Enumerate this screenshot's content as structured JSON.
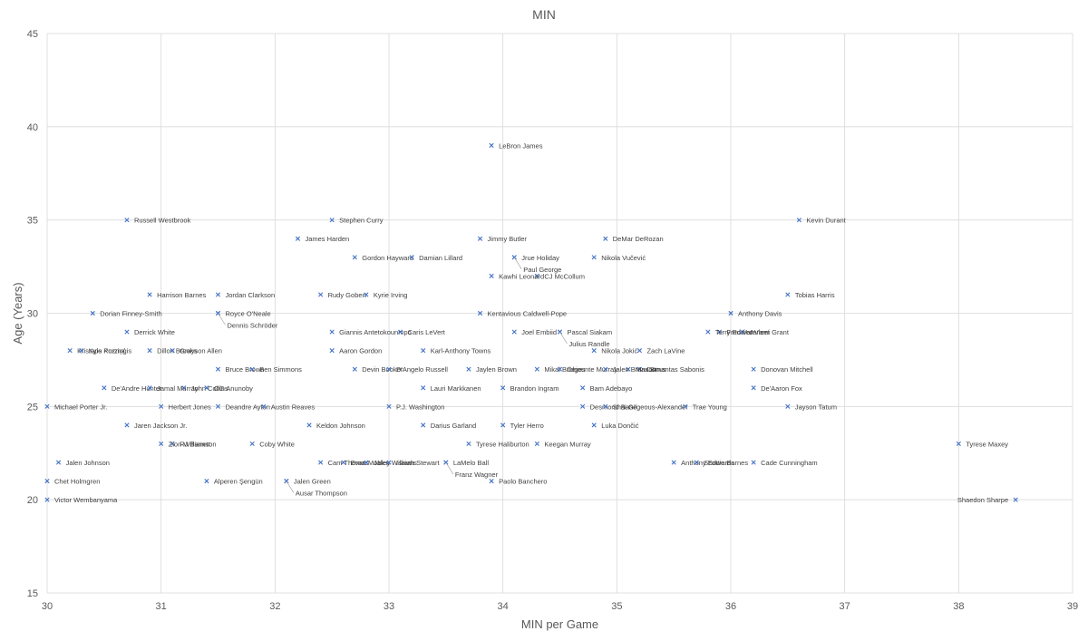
{
  "chart_data": {
    "type": "scatter",
    "title": "MIN",
    "xlabel": "MIN per Game",
    "ylabel": "Age (Years)",
    "xlim": [
      30,
      39
    ],
    "ylim": [
      15,
      45
    ],
    "x_ticks": [
      30,
      31,
      32,
      33,
      34,
      35,
      36,
      37,
      38,
      39
    ],
    "y_ticks": [
      15,
      20,
      25,
      30,
      35,
      40,
      45
    ],
    "grid": true,
    "marker_color": "#4472c4",
    "points": [
      {
        "label": "LeBron James",
        "x": 33.9,
        "y": 39
      },
      {
        "label": "Russell Westbrook",
        "x": 30.7,
        "y": 35
      },
      {
        "label": "Stephen Curry",
        "x": 32.5,
        "y": 35
      },
      {
        "label": "Kevin Durant",
        "x": 36.6,
        "y": 35
      },
      {
        "label": "James Harden",
        "x": 32.2,
        "y": 34
      },
      {
        "label": "Jimmy Butler",
        "x": 33.8,
        "y": 34
      },
      {
        "label": "DeMar DeRozan",
        "x": 34.9,
        "y": 34
      },
      {
        "label": "Gordon Hayward",
        "x": 32.7,
        "y": 33
      },
      {
        "label": "Jrue Holiday",
        "x": 34.1,
        "y": 33
      },
      {
        "label": "Paul George",
        "x": 34.1,
        "y": 33
      },
      {
        "label": "Nikola Vučević",
        "x": 34.8,
        "y": 33
      },
      {
        "label": "Damian Lillard",
        "x": 33.2,
        "y": 33
      },
      {
        "label": "CJ McCollum",
        "x": 34.3,
        "y": 32
      },
      {
        "label": "Kawhi Leonard",
        "x": 33.9,
        "y": 32
      },
      {
        "label": "Tobias Harris",
        "x": 36.5,
        "y": 31
      },
      {
        "label": "Harrison Barnes",
        "x": 30.9,
        "y": 31
      },
      {
        "label": "Jordan Clarkson",
        "x": 31.5,
        "y": 31
      },
      {
        "label": "Rudy Gobert",
        "x": 32.4,
        "y": 31
      },
      {
        "label": "Kyrie Irving",
        "x": 32.8,
        "y": 31
      },
      {
        "label": "Dorian Finney-Smith",
        "x": 30.4,
        "y": 30
      },
      {
        "label": "Royce O'Neale",
        "x": 31.5,
        "y": 30
      },
      {
        "label": "Dennis Schröder",
        "x": 31.5,
        "y": 30
      },
      {
        "label": "Kentavious Caldwell-Pope",
        "x": 33.8,
        "y": 30
      },
      {
        "label": "Anthony Davis",
        "x": 36.0,
        "y": 30
      },
      {
        "label": "Derrick White",
        "x": 30.7,
        "y": 29
      },
      {
        "label": "Giannis Antetokounmpo",
        "x": 32.5,
        "y": 29
      },
      {
        "label": "Caris LeVert",
        "x": 33.1,
        "y": 29
      },
      {
        "label": "Joel Embiid",
        "x": 34.1,
        "y": 29
      },
      {
        "label": "Pascal Siakam",
        "x": 34.5,
        "y": 29
      },
      {
        "label": "Julius Randle",
        "x": 34.5,
        "y": 29
      },
      {
        "label": "Fred VanVleet",
        "x": 35.9,
        "y": 29
      },
      {
        "label": "Jerami Grant",
        "x": 36.1,
        "y": 29
      },
      {
        "label": "Terry Rozier",
        "x": 35.8,
        "y": 29
      },
      {
        "label": "Kristaps Porziņģis",
        "x": 30.2,
        "y": 28
      },
      {
        "label": "Kyle Kuzma",
        "x": 30.3,
        "y": 28
      },
      {
        "label": "Dillon Brooks",
        "x": 30.9,
        "y": 28
      },
      {
        "label": "Grayson Allen",
        "x": 31.1,
        "y": 28
      },
      {
        "label": "Aaron Gordon",
        "x": 32.5,
        "y": 28
      },
      {
        "label": "Karl-Anthony Towns",
        "x": 33.3,
        "y": 28
      },
      {
        "label": "Nikola Jokić",
        "x": 34.8,
        "y": 28
      },
      {
        "label": "Zach LaVine",
        "x": 35.2,
        "y": 28
      },
      {
        "label": "Domantas Sabonis",
        "x": 35.2,
        "y": 27
      },
      {
        "label": "Bruce Brown",
        "x": 31.5,
        "y": 27
      },
      {
        "label": "Ben Simmons",
        "x": 31.8,
        "y": 27
      },
      {
        "label": "Devin Booker",
        "x": 32.7,
        "y": 27
      },
      {
        "label": "D'Angelo Russell",
        "x": 33.0,
        "y": 27
      },
      {
        "label": "Jaylen Brown",
        "x": 33.7,
        "y": 27
      },
      {
        "label": "Mikal Bridges",
        "x": 34.3,
        "y": 27
      },
      {
        "label": "Dejounte Murray",
        "x": 34.5,
        "y": 27
      },
      {
        "label": "Max Strus",
        "x": 35.1,
        "y": 27
      },
      {
        "label": "Jalen Brunson",
        "x": 34.9,
        "y": 27
      },
      {
        "label": "Donovan Mitchell",
        "x": 36.2,
        "y": 27
      },
      {
        "label": "De'Andre Hunter",
        "x": 30.5,
        "y": 26
      },
      {
        "label": "John Collins",
        "x": 31.2,
        "y": 26
      },
      {
        "label": "OG Anunoby",
        "x": 31.4,
        "y": 26
      },
      {
        "label": "Jamal Murray",
        "x": 30.9,
        "y": 26
      },
      {
        "label": "Lauri Markkanen",
        "x": 33.3,
        "y": 26
      },
      {
        "label": "Brandon Ingram",
        "x": 34.0,
        "y": 26
      },
      {
        "label": "Bam Adebayo",
        "x": 34.7,
        "y": 26
      },
      {
        "label": "De'Aaron Fox",
        "x": 36.2,
        "y": 26
      },
      {
        "label": "Michael Porter Jr.",
        "x": 30.0,
        "y": 25
      },
      {
        "label": "Deandre Ayton",
        "x": 31.5,
        "y": 25
      },
      {
        "label": "Herbert Jones",
        "x": 31.0,
        "y": 25
      },
      {
        "label": "Austin Reaves",
        "x": 31.9,
        "y": 25
      },
      {
        "label": "P.J. Washington",
        "x": 33.0,
        "y": 25
      },
      {
        "label": "Desmond Bane",
        "x": 34.7,
        "y": 25
      },
      {
        "label": "Shai Gilgeous-Alexander",
        "x": 34.9,
        "y": 25
      },
      {
        "label": "Trae Young",
        "x": 35.6,
        "y": 25
      },
      {
        "label": "Jayson Tatum",
        "x": 36.5,
        "y": 25
      },
      {
        "label": "Jaren Jackson Jr.",
        "x": 30.7,
        "y": 24
      },
      {
        "label": "Keldon Johnson",
        "x": 32.3,
        "y": 24
      },
      {
        "label": "Darius Garland",
        "x": 33.3,
        "y": 24
      },
      {
        "label": "Tyler Herro",
        "x": 34.0,
        "y": 24
      },
      {
        "label": "Luka Dončić",
        "x": 34.8,
        "y": 24
      },
      {
        "label": "RJ Barrett",
        "x": 31.1,
        "y": 23
      },
      {
        "label": "Zion Williamson",
        "x": 31.0,
        "y": 23
      },
      {
        "label": "Coby White",
        "x": 31.8,
        "y": 23
      },
      {
        "label": "Tyrese Haliburton",
        "x": 33.7,
        "y": 23
      },
      {
        "label": "Keegan Murray",
        "x": 34.3,
        "y": 23
      },
      {
        "label": "Tyrese Maxey",
        "x": 38.0,
        "y": 23
      },
      {
        "label": "Jalen Johnson",
        "x": 30.1,
        "y": 22
      },
      {
        "label": "Evan Mobley",
        "x": 32.6,
        "y": 22
      },
      {
        "label": "Cam Thomas",
        "x": 32.4,
        "y": 22
      },
      {
        "label": "Jalen Williams",
        "x": 32.8,
        "y": 22
      },
      {
        "label": "Isaiah Stewart",
        "x": 33.0,
        "y": 22
      },
      {
        "label": "LaMelo Ball",
        "x": 33.5,
        "y": 22
      },
      {
        "label": "Franz Wagner",
        "x": 33.5,
        "y": 22
      },
      {
        "label": "Anthony Edwards",
        "x": 35.5,
        "y": 22
      },
      {
        "label": "Scottie Barnes",
        "x": 35.7,
        "y": 22
      },
      {
        "label": "Cade Cunningham",
        "x": 36.2,
        "y": 22
      },
      {
        "label": "Chet Holmgren",
        "x": 30.0,
        "y": 21
      },
      {
        "label": "Alperen Şengün",
        "x": 31.4,
        "y": 21
      },
      {
        "label": "Jalen Green",
        "x": 32.1,
        "y": 21
      },
      {
        "label": "Ausar Thompson",
        "x": 32.1,
        "y": 21
      },
      {
        "label": "Paolo Banchero",
        "x": 33.9,
        "y": 21
      },
      {
        "label": "Victor Wembanyama",
        "x": 30.0,
        "y": 20
      },
      {
        "label": "Shaedon Sharpe",
        "x": 38.5,
        "y": 20
      }
    ]
  }
}
